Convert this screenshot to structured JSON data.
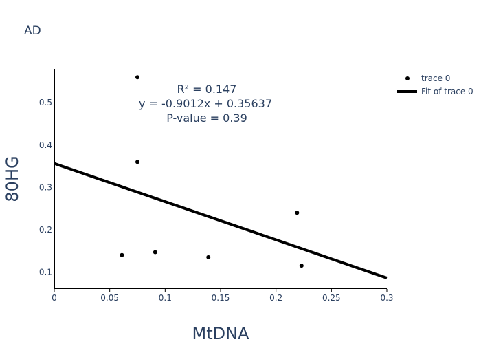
{
  "chart_data": {
    "type": "scatter",
    "title": "AD",
    "xlabel": "MtDNA",
    "ylabel": "80HG",
    "xlim": [
      0,
      0.3
    ],
    "ylim": [
      0.06,
      0.58
    ],
    "xticks": [
      0,
      0.05,
      0.1,
      0.15,
      0.2,
      0.25,
      0.3
    ],
    "xtick_labels": [
      "0",
      "0.05",
      "0.1",
      "0.15",
      "0.2",
      "0.25",
      "0.3"
    ],
    "yticks": [
      0.1,
      0.2,
      0.3,
      0.4,
      0.5
    ],
    "ytick_labels": [
      "0.1",
      "0.2",
      "0.3",
      "0.4",
      "0.5"
    ],
    "grid": false,
    "series": [
      {
        "name": "trace 0",
        "mode": "markers",
        "color": "#000000",
        "x": [
          0.075,
          0.075,
          0.061,
          0.091,
          0.139,
          0.219,
          0.223
        ],
        "y": [
          0.56,
          0.36,
          0.14,
          0.147,
          0.135,
          0.24,
          0.115
        ]
      },
      {
        "name": "Fit of trace 0",
        "mode": "lines",
        "color": "#000000",
        "x": [
          0,
          0.3
        ],
        "y": [
          0.35637,
          0.08601
        ]
      }
    ],
    "annotations": [
      "R²  = 0.147",
      "y = -0.9012x + 0.35637",
      "P-value = 0.39"
    ],
    "legend": {
      "placement": "top-right",
      "entries": [
        "trace 0",
        "Fit of trace 0"
      ]
    }
  }
}
